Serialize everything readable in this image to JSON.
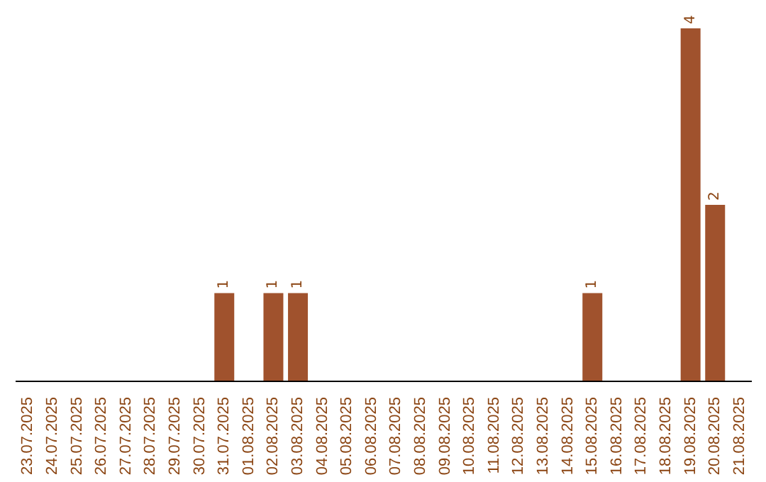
{
  "chart_data": {
    "type": "bar",
    "categories": [
      "23.07.2025",
      "24.07.2025",
      "25.07.2025",
      "26.07.2025",
      "27.07.2025",
      "28.07.2025",
      "29.07.2025",
      "30.07.2025",
      "31.07.2025",
      "01.08.2025",
      "02.08.2025",
      "03.08.2025",
      "04.08.2025",
      "05.08.2025",
      "06.08.2025",
      "07.08.2025",
      "08.08.2025",
      "09.08.2025",
      "10.08.2025",
      "11.08.2025",
      "12.08.2025",
      "13.08.2025",
      "14.08.2025",
      "15.08.2025",
      "16.08.2025",
      "17.08.2025",
      "18.08.2025",
      "19.08.2025",
      "20.08.2025",
      "21.08.2025"
    ],
    "values": [
      0,
      0,
      0,
      0,
      0,
      0,
      0,
      0,
      1,
      0,
      1,
      1,
      0,
      0,
      0,
      0,
      0,
      0,
      0,
      0,
      0,
      0,
      0,
      1,
      0,
      0,
      0,
      4,
      2,
      0
    ],
    "value_labels": [
      null,
      null,
      null,
      null,
      null,
      null,
      null,
      null,
      "1",
      null,
      "1",
      "1",
      null,
      null,
      null,
      null,
      null,
      null,
      null,
      null,
      null,
      null,
      null,
      "1",
      null,
      null,
      null,
      "4",
      "2",
      null
    ],
    "color": "#a0522d"
  }
}
